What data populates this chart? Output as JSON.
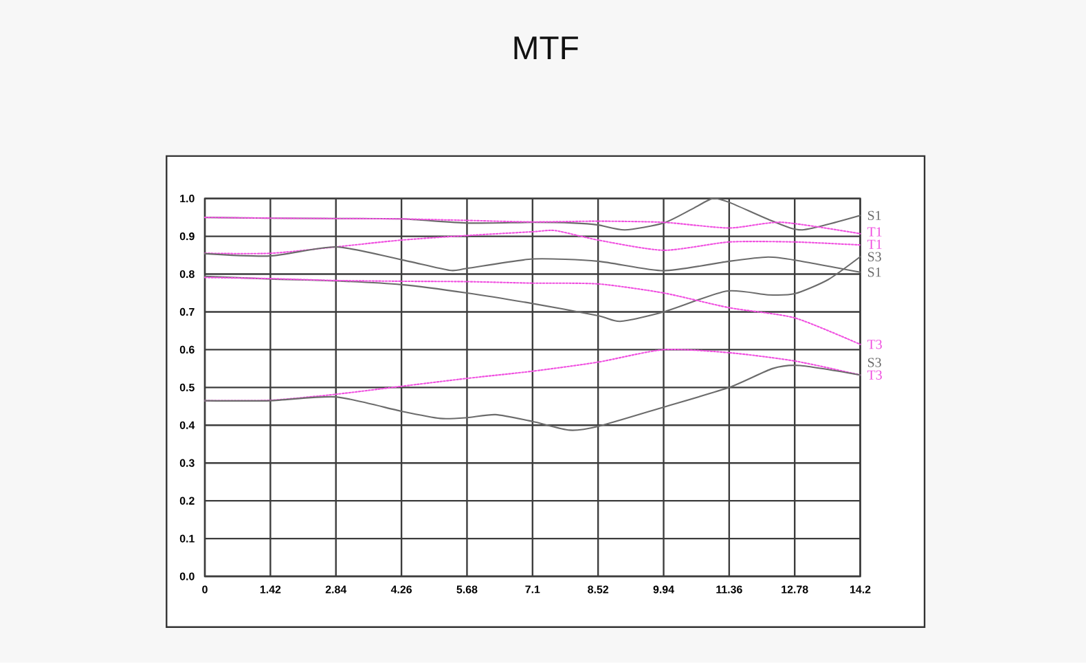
{
  "chart_data": {
    "type": "line",
    "title": "MTF",
    "xlim": [
      0,
      14.2
    ],
    "xticks": [
      0,
      1.42,
      2.84,
      4.26,
      5.68,
      7.1,
      8.52,
      9.94,
      11.36,
      12.78,
      14.2
    ],
    "ylim": [
      0,
      1
    ],
    "yticks": [
      {
        "value": 0,
        "label": "0.0"
      },
      0.1,
      0.2,
      0.3,
      0.4,
      0.5,
      0.6,
      0.7,
      0.8,
      0.9,
      {
        "value": 1,
        "label": "1.0"
      }
    ],
    "grid": true,
    "series": [
      {
        "name": "S1",
        "color": "#6b6b6b",
        "line_style": "solid",
        "x": [
          0,
          1.42,
          2.84,
          4.26,
          5.68,
          7.1,
          8.0,
          8.52,
          9.1,
          9.94,
          10.6,
          11.0,
          11.36,
          12.3,
          12.95,
          14.2
        ],
        "values": [
          0.95,
          0.948,
          0.947,
          0.946,
          0.935,
          0.937,
          0.935,
          0.93,
          0.917,
          0.935,
          0.975,
          1.0,
          0.99,
          0.94,
          0.917,
          0.955
        ]
      },
      {
        "name": "T1",
        "color": "#f050e0",
        "line_style": "dotted",
        "x": [
          0,
          1.42,
          2.84,
          4.26,
          5.68,
          7.1,
          8.52,
          9.94,
          11.36,
          12.5,
          14.2
        ],
        "values": [
          0.95,
          0.948,
          0.947,
          0.946,
          0.942,
          0.938,
          0.94,
          0.937,
          0.922,
          0.937,
          0.907
        ]
      },
      {
        "name": "T1",
        "color": "#f050e0",
        "line_style": "dotted",
        "x": [
          0,
          1.42,
          2.84,
          4.26,
          5.68,
          7.1,
          7.6,
          8.52,
          9.94,
          11.36,
          12.78,
          14.2
        ],
        "values": [
          0.855,
          0.855,
          0.872,
          0.89,
          0.902,
          0.912,
          0.915,
          0.89,
          0.863,
          0.885,
          0.885,
          0.877
        ]
      },
      {
        "name": "S3",
        "color": "#6b6b6b",
        "line_style": "solid",
        "x": [
          0,
          1.42,
          2.84,
          4.26,
          5.68,
          7.1,
          8.52,
          9.0,
          9.94,
          11.3,
          12.2,
          12.78,
          13.5,
          14.2
        ],
        "values": [
          0.794,
          0.787,
          0.782,
          0.772,
          0.75,
          0.722,
          0.69,
          0.675,
          0.7,
          0.755,
          0.745,
          0.748,
          0.785,
          0.846
        ]
      },
      {
        "name": "S1",
        "color": "#6b6b6b",
        "line_style": "solid",
        "x": [
          0,
          1.42,
          2.84,
          4.26,
          5.3,
          5.68,
          7.1,
          8.52,
          9.94,
          11.36,
          12.2,
          12.78,
          14.2
        ],
        "values": [
          0.854,
          0.848,
          0.872,
          0.838,
          0.81,
          0.815,
          0.84,
          0.834,
          0.809,
          0.834,
          0.845,
          0.837,
          0.805
        ]
      },
      {
        "name": "T3",
        "color": "#f050e0",
        "line_style": "dotted",
        "x": [
          0,
          1.42,
          2.84,
          4.26,
          5.68,
          7.1,
          8.52,
          9.94,
          11.36,
          12.78,
          14.2
        ],
        "values": [
          0.791,
          0.788,
          0.783,
          0.781,
          0.78,
          0.776,
          0.774,
          0.75,
          0.711,
          0.684,
          0.614
        ]
      },
      {
        "name": "T3",
        "color": "#f050e0",
        "line_style": "dotted",
        "x": [
          0,
          1.42,
          2.84,
          4.26,
          5.68,
          7.1,
          8.52,
          9.94,
          11.36,
          12.78,
          14.2
        ],
        "values": [
          0.465,
          0.466,
          0.482,
          0.503,
          0.524,
          0.543,
          0.567,
          0.6,
          0.592,
          0.57,
          0.533
        ]
      },
      {
        "name": "S3",
        "color": "#6b6b6b",
        "line_style": "solid",
        "x": [
          0,
          1.42,
          2.84,
          4.26,
          5.1,
          5.68,
          6.3,
          7.1,
          7.9,
          8.52,
          9.94,
          11.36,
          12.3,
          12.9,
          14.2
        ],
        "values": [
          0.465,
          0.465,
          0.475,
          0.437,
          0.418,
          0.42,
          0.428,
          0.41,
          0.387,
          0.397,
          0.448,
          0.5,
          0.55,
          0.558,
          0.533
        ]
      }
    ]
  }
}
